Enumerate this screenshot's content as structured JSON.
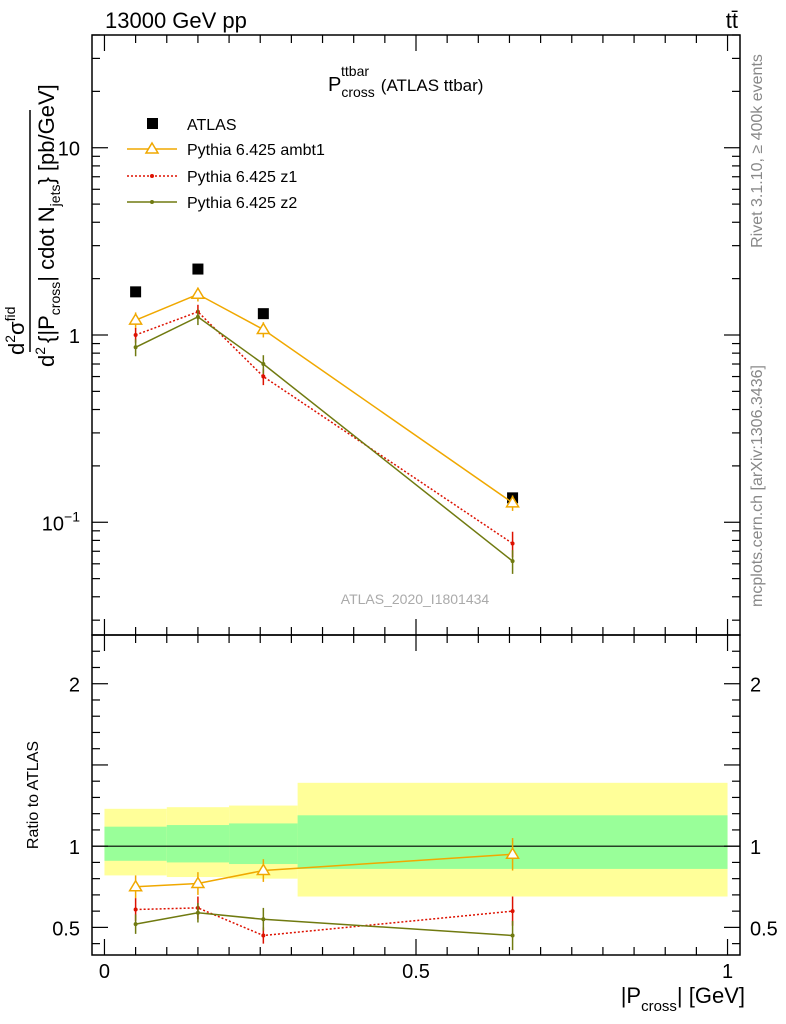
{
  "header": {
    "left": "13000 GeV pp",
    "right": "tt̄"
  },
  "side_text": {
    "rivet": "Rivet 3.1.10, ≥ 400k events",
    "mcplots": "mcplots.cern.ch [arXiv:1306.3436]"
  },
  "chart_data": [
    {
      "type": "line",
      "title": "P_cross^ttbar (ATLAS ttbar)",
      "title_main": "P",
      "title_sub": "cross",
      "title_sup": "ttbar",
      "title_rest": "(ATLAS ttbar)",
      "watermark": "ATLAS_2020_I1801434",
      "ylabel": "d²σ^fid / d²{|P_cross| cdot N_jets} [pb/GeV]",
      "ylabel_parts": {
        "num_d": "d",
        "num_sup": "2",
        "num_sigma": "σ",
        "num_fid": "fid",
        "den_d": "d",
        "den_sup": "2",
        "den_a": "{|P",
        "den_cross": "cross",
        "den_b": "| cdot N",
        "den_jets": "jets",
        "den_c": "} [pb/GeV]"
      },
      "yscale": "log",
      "ylim": [
        0.025,
        40
      ],
      "xlim": [
        -0.02,
        1.02
      ],
      "y_ticks": [
        {
          "value": 0.1,
          "base": "10",
          "exp": "−1"
        },
        {
          "value": 1,
          "base": "1",
          "exp": ""
        },
        {
          "value": 10,
          "base": "10",
          "exp": ""
        }
      ],
      "legend_position": "top-left",
      "series": [
        {
          "name": "ATLAS",
          "marker": "square",
          "color": "#000000",
          "x": [
            0.05,
            0.15,
            0.255,
            0.655
          ],
          "y": [
            1.7,
            2.25,
            1.3,
            0.135
          ],
          "err": [
            0.05,
            0.06,
            0.04,
            0.006
          ]
        },
        {
          "name": "Pythia 6.425 ambt1",
          "marker": "triangle",
          "color": "#f0a800",
          "x": [
            0.05,
            0.15,
            0.255,
            0.655
          ],
          "y": [
            1.2,
            1.65,
            1.07,
            0.127
          ],
          "err": [
            0.12,
            0.14,
            0.1,
            0.012
          ]
        },
        {
          "name": "Pythia 6.425 z1",
          "marker": "dot",
          "color": "#dd1100",
          "dash": "2,2",
          "x": [
            0.05,
            0.15,
            0.255,
            0.655
          ],
          "y": [
            1.0,
            1.33,
            0.6,
            0.077
          ],
          "err": [
            0.09,
            0.12,
            0.06,
            0.012
          ]
        },
        {
          "name": "Pythia 6.425 z2",
          "marker": "dot",
          "color": "#707a10",
          "x": [
            0.05,
            0.15,
            0.255,
            0.655
          ],
          "y": [
            0.86,
            1.25,
            0.7,
            0.062
          ],
          "err": [
            0.09,
            0.12,
            0.08,
            0.009
          ]
        }
      ]
    },
    {
      "type": "line",
      "ylabel": "Ratio to ATLAS",
      "xlabel": "|P_cross| [GeV]",
      "xlabel_parts": {
        "a": "|P",
        "sub": "cross",
        "b": "| [GeV]"
      },
      "ylim": [
        0.33,
        2.3
      ],
      "xlim": [
        -0.02,
        1.02
      ],
      "y_ticks": [
        0.5,
        1,
        2
      ],
      "x_ticks": [
        0,
        0.5,
        1
      ],
      "bands": [
        {
          "x0": 0.0,
          "x1": 0.1,
          "yellow": [
            0.82,
            1.23
          ],
          "green": [
            0.91,
            1.12
          ]
        },
        {
          "x0": 0.1,
          "x1": 0.2,
          "yellow": [
            0.81,
            1.24
          ],
          "green": [
            0.9,
            1.13
          ]
        },
        {
          "x0": 0.2,
          "x1": 0.31,
          "yellow": [
            0.8,
            1.25
          ],
          "green": [
            0.89,
            1.14
          ]
        },
        {
          "x0": 0.31,
          "x1": 1.0,
          "yellow": [
            0.69,
            1.39
          ],
          "green": [
            0.86,
            1.19
          ]
        }
      ],
      "series": [
        {
          "name": "Pythia 6.425 ambt1",
          "marker": "triangle",
          "color": "#f0a800",
          "x": [
            0.05,
            0.15,
            0.255,
            0.655
          ],
          "y": [
            0.75,
            0.77,
            0.85,
            0.95
          ],
          "err": [
            0.07,
            0.07,
            0.07,
            0.1
          ]
        },
        {
          "name": "Pythia 6.425 z1",
          "marker": "dot",
          "color": "#dd1100",
          "dash": "2,2",
          "x": [
            0.05,
            0.15,
            0.255,
            0.655
          ],
          "y": [
            0.61,
            0.62,
            0.45,
            0.6
          ],
          "err": [
            0.07,
            0.07,
            0.05,
            0.09
          ]
        },
        {
          "name": "Pythia 6.425 z2",
          "marker": "dot",
          "color": "#707a10",
          "x": [
            0.05,
            0.15,
            0.255,
            0.655
          ],
          "y": [
            0.52,
            0.59,
            0.55,
            0.45
          ],
          "err": [
            0.06,
            0.06,
            0.07,
            0.09
          ]
        }
      ]
    }
  ]
}
